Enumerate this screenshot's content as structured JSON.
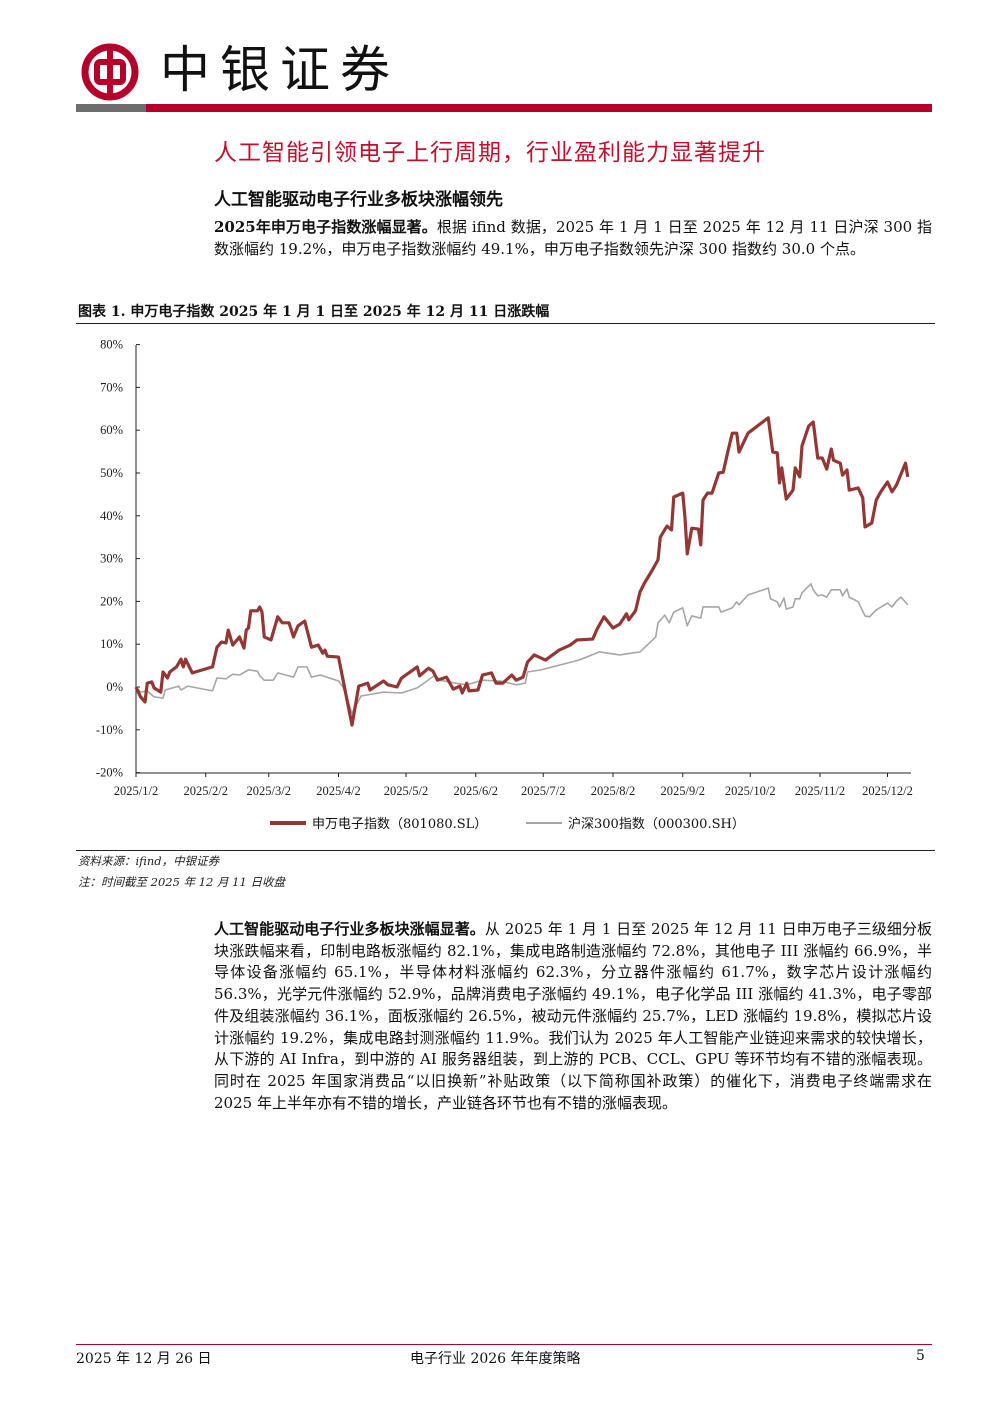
{
  "header": {
    "brand": "中银证券",
    "brand_color": "#b5002b"
  },
  "section_title": "人工智能引领电子上行周期，行业盈利能力显著提升",
  "subsection_title": "人工智能驱动电子行业多板块涨幅领先",
  "para1": {
    "lead": "2025年申万电子指数涨幅显著。",
    "text": "根据 ifind 数据，2025 年 1 月 1 日至 2025 年 12 月 11 日沪深 300 指数涨幅约 19.2%，申万电子指数涨幅约 49.1%，申万电子指数领先沪深 300 指数约 30.0 个点。"
  },
  "figure": {
    "title": "图表 1. 申万电子指数 2025 年 1 月 1 日至 2025 年 12 月 11 日涨跌幅",
    "source": "资料来源：ifind，中银证券",
    "note": "注：时间截至 2025 年 12 月 11 日收盘"
  },
  "chart_data": {
    "type": "line",
    "title": "",
    "x_unit": "days since 2025/1/2",
    "xlim": [
      0,
      343
    ],
    "ylim": [
      -20,
      80
    ],
    "y_ticks": [
      -20,
      -10,
      0,
      10,
      20,
      30,
      40,
      50,
      60,
      70,
      80
    ],
    "y_tick_labels": [
      "-20%",
      "-10%",
      "0%",
      "10%",
      "20%",
      "30%",
      "40%",
      "50%",
      "60%",
      "70%",
      "80%"
    ],
    "x_ticks": [
      0,
      31,
      59,
      90,
      120,
      151,
      181,
      212,
      243,
      273,
      304,
      334
    ],
    "x_tick_labels": [
      "2025/1/2",
      "2025/2/2",
      "2025/3/2",
      "2025/4/2",
      "2025/5/2",
      "2025/6/2",
      "2025/7/2",
      "2025/8/2",
      "2025/9/2",
      "2025/10/2",
      "2025/11/2",
      "2025/12/2"
    ],
    "grid": false,
    "legend_position": "bottom",
    "series": [
      {
        "name": "申万电子指数（801080.SL）",
        "color": "#943634",
        "points": [
          [
            0,
            0
          ],
          [
            2,
            -2.3
          ],
          [
            4,
            -3.5
          ],
          [
            5,
            0.9
          ],
          [
            7,
            1.2
          ],
          [
            8,
            -0.2
          ],
          [
            11,
            -1.2
          ],
          [
            12,
            3.5
          ],
          [
            14,
            2.1
          ],
          [
            15,
            3.5
          ],
          [
            18,
            4.7
          ],
          [
            20,
            6.5
          ],
          [
            21,
            4.7
          ],
          [
            22,
            6.5
          ],
          [
            25,
            3.3
          ],
          [
            34,
            4.7
          ],
          [
            36,
            9.3
          ],
          [
            38,
            10.5
          ],
          [
            40,
            10.3
          ],
          [
            41,
            13.3
          ],
          [
            43,
            9.8
          ],
          [
            46,
            11.7
          ],
          [
            48,
            9.1
          ],
          [
            49,
            13.3
          ],
          [
            50,
            13.8
          ],
          [
            51,
            17.8
          ],
          [
            54,
            17.8
          ],
          [
            55,
            18.7
          ],
          [
            56,
            17.5
          ],
          [
            57,
            11.7
          ],
          [
            60,
            11.0
          ],
          [
            63,
            16.4
          ],
          [
            65,
            15.0
          ],
          [
            68,
            15.0
          ],
          [
            70,
            11.7
          ],
          [
            72,
            14.3
          ],
          [
            75,
            15.4
          ],
          [
            78,
            9.3
          ],
          [
            81,
            9.8
          ],
          [
            83,
            7.9
          ],
          [
            84,
            8.6
          ],
          [
            85,
            7.2
          ],
          [
            90,
            7.0
          ],
          [
            96,
            -8.9
          ],
          [
            99,
            0.2
          ],
          [
            103,
            0.9
          ],
          [
            104,
            -0.7
          ],
          [
            110,
            1.4
          ],
          [
            112,
            0.5
          ],
          [
            116,
            0
          ],
          [
            118,
            2.1
          ],
          [
            125,
            4.7
          ],
          [
            126,
            2.6
          ],
          [
            130,
            4.4
          ],
          [
            132,
            3.7
          ],
          [
            134,
            1.6
          ],
          [
            138,
            2.3
          ],
          [
            141,
            -0.5
          ],
          [
            144,
            0.2
          ],
          [
            145,
            -1.4
          ],
          [
            147,
            0.9
          ],
          [
            148,
            -0.9
          ],
          [
            152,
            -0.7
          ],
          [
            154,
            2.8
          ],
          [
            158,
            3.3
          ],
          [
            160,
            0.9
          ],
          [
            163,
            0.9
          ],
          [
            167,
            2.8
          ],
          [
            169,
            1.6
          ],
          [
            172,
            2.3
          ],
          [
            174,
            5.8
          ],
          [
            177,
            7.5
          ],
          [
            182,
            6.3
          ],
          [
            188,
            8.6
          ],
          [
            193,
            9.8
          ],
          [
            196,
            11.0
          ],
          [
            203,
            11.2
          ],
          [
            205,
            13.6
          ],
          [
            208,
            16.4
          ],
          [
            212,
            13.8
          ],
          [
            215,
            14.7
          ],
          [
            218,
            17.1
          ],
          [
            219,
            15.7
          ],
          [
            222,
            17.8
          ],
          [
            224,
            22.2
          ],
          [
            226,
            24.3
          ],
          [
            229,
            26.9
          ],
          [
            232,
            29.7
          ],
          [
            233,
            35.0
          ],
          [
            236,
            37.6
          ],
          [
            238,
            36.7
          ],
          [
            239,
            44.4
          ],
          [
            243,
            45.3
          ],
          [
            244,
            39.5
          ],
          [
            245,
            31.1
          ],
          [
            247,
            37.1
          ],
          [
            250,
            36.9
          ],
          [
            251,
            33.2
          ],
          [
            252,
            43.7
          ],
          [
            254,
            45.3
          ],
          [
            256,
            45.3
          ],
          [
            259,
            50.0
          ],
          [
            261,
            50.2
          ],
          [
            263,
            54.9
          ],
          [
            265,
            59.3
          ],
          [
            267,
            59.3
          ],
          [
            268,
            54.9
          ],
          [
            272,
            59.3
          ],
          [
            281,
            62.9
          ],
          [
            283,
            54.9
          ],
          [
            285,
            54.7
          ],
          [
            286,
            47.7
          ],
          [
            287,
            51.2
          ],
          [
            289,
            43.9
          ],
          [
            292,
            46.0
          ],
          [
            293,
            51.2
          ],
          [
            295,
            49.1
          ],
          [
            296,
            56.3
          ],
          [
            299,
            61.0
          ],
          [
            301,
            61.9
          ],
          [
            303,
            53.5
          ],
          [
            305,
            53.5
          ],
          [
            307,
            50.9
          ],
          [
            309,
            55.6
          ],
          [
            310,
            53.0
          ],
          [
            313,
            52.3
          ],
          [
            314,
            49.5
          ],
          [
            316,
            50.7
          ],
          [
            317,
            46.0
          ],
          [
            321,
            46.5
          ],
          [
            323,
            44.2
          ],
          [
            324,
            37.4
          ],
          [
            327,
            38.3
          ],
          [
            329,
            43.7
          ],
          [
            331,
            45.6
          ],
          [
            334,
            47.9
          ],
          [
            336,
            45.6
          ],
          [
            338,
            47.2
          ],
          [
            342,
            52.3
          ],
          [
            343,
            49.1
          ]
        ]
      },
      {
        "name": "沪深300指数（000300.SH）",
        "color": "#a6a6a6",
        "points": [
          [
            0,
            0
          ],
          [
            2,
            -1.2
          ],
          [
            5,
            -0.9
          ],
          [
            8,
            -2.3
          ],
          [
            12,
            -2.6
          ],
          [
            13,
            -0.7
          ],
          [
            19,
            0.2
          ],
          [
            20,
            -0.7
          ],
          [
            23,
            0.2
          ],
          [
            34,
            -0.9
          ],
          [
            36,
            2.1
          ],
          [
            40,
            1.9
          ],
          [
            43,
            3.0
          ],
          [
            46,
            2.8
          ],
          [
            50,
            4.0
          ],
          [
            54,
            3.7
          ],
          [
            55,
            2.6
          ],
          [
            57,
            1.6
          ],
          [
            61,
            1.6
          ],
          [
            63,
            3.3
          ],
          [
            70,
            2.3
          ],
          [
            72,
            4.7
          ],
          [
            76,
            4.7
          ],
          [
            78,
            2.3
          ],
          [
            82,
            2.8
          ],
          [
            90,
            1.4
          ],
          [
            92,
            0
          ],
          [
            96,
            -6.1
          ],
          [
            100,
            -2.1
          ],
          [
            110,
            -1.2
          ],
          [
            118,
            -1.4
          ],
          [
            125,
            -0.2
          ],
          [
            128,
            0.9
          ],
          [
            133,
            2.8
          ],
          [
            135,
            1.6
          ],
          [
            142,
            0.9
          ],
          [
            147,
            0.5
          ],
          [
            154,
            1.6
          ],
          [
            162,
            1.4
          ],
          [
            169,
            0.5
          ],
          [
            173,
            0.9
          ],
          [
            174,
            3.5
          ],
          [
            180,
            4.0
          ],
          [
            197,
            6.3
          ],
          [
            206,
            8.2
          ],
          [
            215,
            7.5
          ],
          [
            224,
            8.2
          ],
          [
            231,
            11.7
          ],
          [
            232,
            15.0
          ],
          [
            235,
            16.8
          ],
          [
            237,
            15.0
          ],
          [
            239,
            17.5
          ],
          [
            243,
            18.5
          ],
          [
            245,
            14.3
          ],
          [
            247,
            16.6
          ],
          [
            251,
            16.1
          ],
          [
            252,
            18.7
          ],
          [
            259,
            18.7
          ],
          [
            260,
            17.5
          ],
          [
            265,
            18.5
          ],
          [
            267,
            19.9
          ],
          [
            268,
            19.2
          ],
          [
            272,
            21.5
          ],
          [
            281,
            23.1
          ],
          [
            282,
            20.6
          ],
          [
            285,
            19.9
          ],
          [
            286,
            18.7
          ],
          [
            288,
            20.8
          ],
          [
            289,
            18.2
          ],
          [
            292,
            18.7
          ],
          [
            293,
            20.6
          ],
          [
            295,
            20.6
          ],
          [
            296,
            22.0
          ],
          [
            300,
            24.1
          ],
          [
            301,
            22.7
          ],
          [
            303,
            21.3
          ],
          [
            305,
            21.5
          ],
          [
            307,
            21.0
          ],
          [
            309,
            22.7
          ],
          [
            313,
            22.7
          ],
          [
            314,
            21.3
          ],
          [
            316,
            22.9
          ],
          [
            317,
            21.0
          ],
          [
            321,
            19.9
          ],
          [
            324,
            16.6
          ],
          [
            326,
            16.4
          ],
          [
            329,
            18.0
          ],
          [
            334,
            19.6
          ],
          [
            336,
            18.7
          ],
          [
            338,
            20.1
          ],
          [
            340,
            21.0
          ],
          [
            343,
            19.2
          ]
        ]
      }
    ]
  },
  "para2": {
    "lead": "人工智能驱动电子行业多板块涨幅显著。",
    "text": "从 2025 年 1 月 1 日至 2025 年 12 月 11 日申万电子三级细分板块涨跌幅来看，印制电路板涨幅约 82.1%，集成电路制造涨幅约 72.8%，其他电子 III 涨幅约 66.9%，半导体设备涨幅约 65.1%，半导体材料涨幅约 62.3%，分立器件涨幅约 61.7%，数字芯片设计涨幅约 56.3%，光学元件涨幅约 52.9%，品牌消费电子涨幅约 49.1%，电子化学品 III 涨幅约 41.3%，电子零部件及组装涨幅约 36.1%，面板涨幅约 26.5%，被动元件涨幅约 25.7%，LED 涨幅约 19.8%，模拟芯片设计涨幅约 19.2%，集成电路封测涨幅约 11.9%。我们认为 2025 年人工智能产业链迎来需求的较快增长，从下游的 AI Infra，到中游的 AI 服务器组装，到上游的 PCB、CCL、GPU 等环节均有不错的涨幅表现。同时在 2025 年国家消费品“以旧换新”补贴政策（以下简称国补政策）的催化下，消费电子终端需求在 2025 年上半年亦有不错的增长，产业链各环节也有不错的涨幅表现。"
  },
  "footer": {
    "date": "2025 年 12 月 26 日",
    "doc_title": "电子行业 2026 年年度策略",
    "page": "5"
  }
}
